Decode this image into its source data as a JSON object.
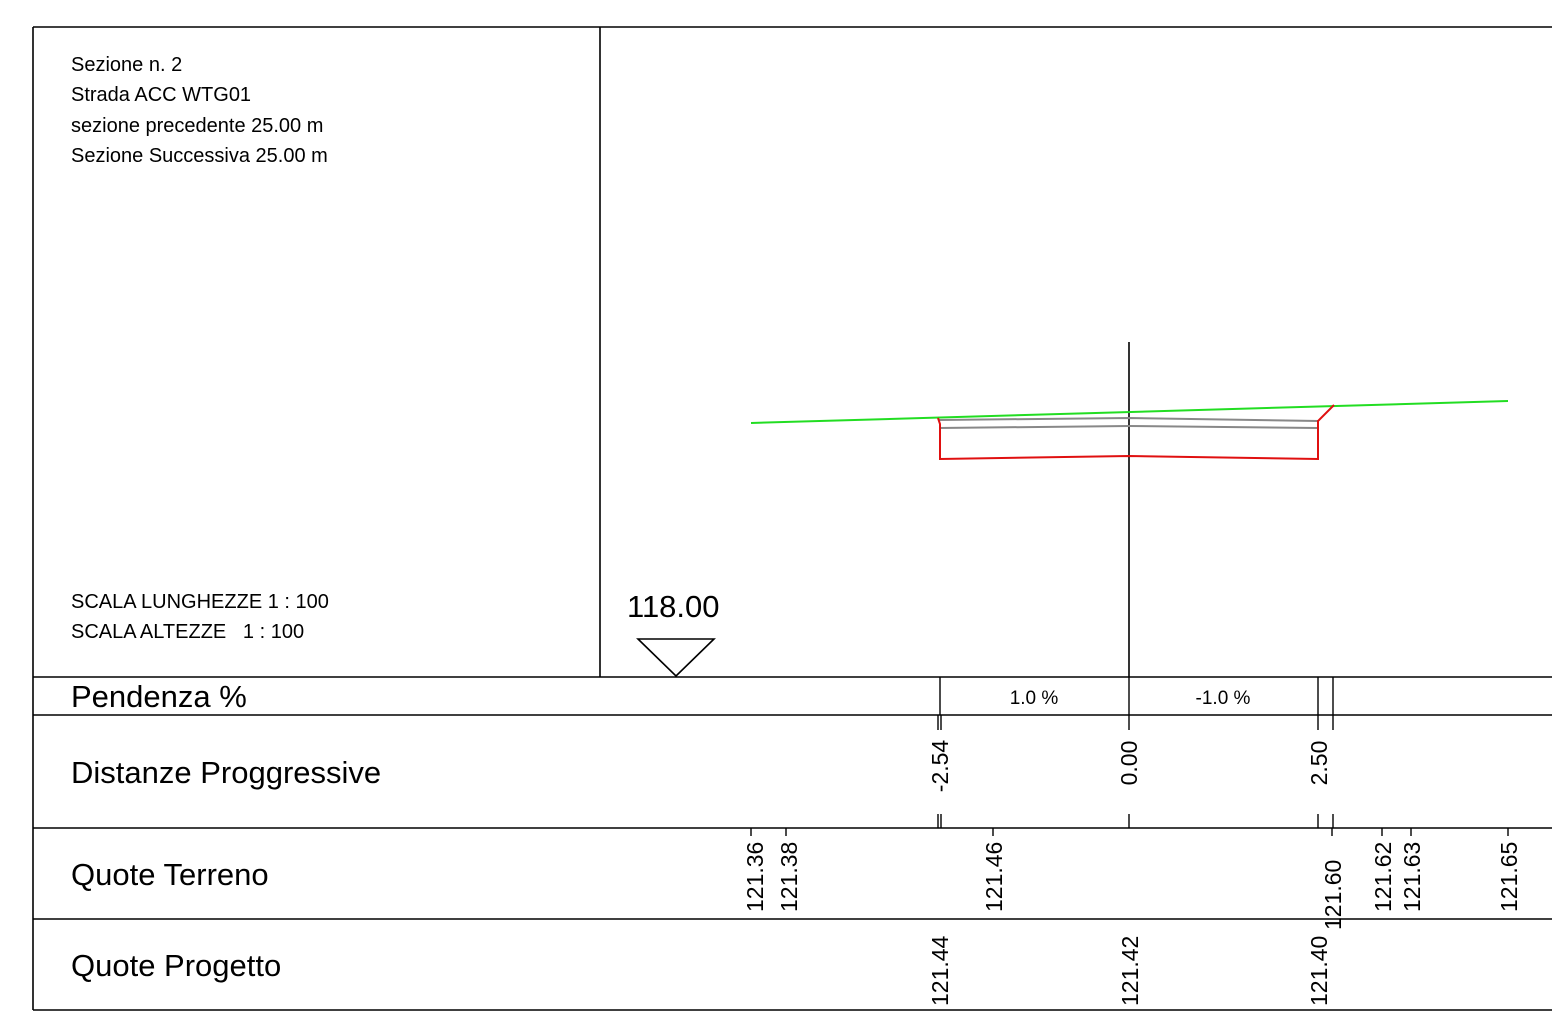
{
  "section_info": {
    "title": "Sezione n. 2",
    "road": "Strada ACC WTG01",
    "previous": "sezione precedente 25.00 m",
    "next": "Sezione Successiva 25.00 m"
  },
  "scales": {
    "lengths": "SCALA LUNGHEZZE 1 : 100",
    "heights": "SCALA ALTEZZE   1 : 100"
  },
  "datum": {
    "label": "118.00"
  },
  "rows": {
    "slope": "Pendenza %",
    "distances": "Distanze Proggressive",
    "ground": "Quote Terreno",
    "design": "Quote Progetto"
  },
  "slopes": [
    {
      "label": "1.0 %"
    },
    {
      "label": "-1.0 %"
    }
  ],
  "distances": [
    {
      "label": "-2.54"
    },
    {
      "label": "0.00"
    },
    {
      "label": "2.50"
    }
  ],
  "ground_elevations": [
    {
      "label": "121.36"
    },
    {
      "label": "121.38"
    },
    {
      "label": "121.46"
    },
    {
      "label": "121.60"
    },
    {
      "label": "121.62"
    },
    {
      "label": "121.63"
    },
    {
      "label": "121.65"
    }
  ],
  "design_elevations": [
    {
      "label": "121.44"
    },
    {
      "label": "121.42"
    },
    {
      "label": "121.40"
    }
  ],
  "colors": {
    "ground_line": "#22dd22",
    "design_outline": "#e01010",
    "pavement": "#888888",
    "linework": "#000000"
  }
}
